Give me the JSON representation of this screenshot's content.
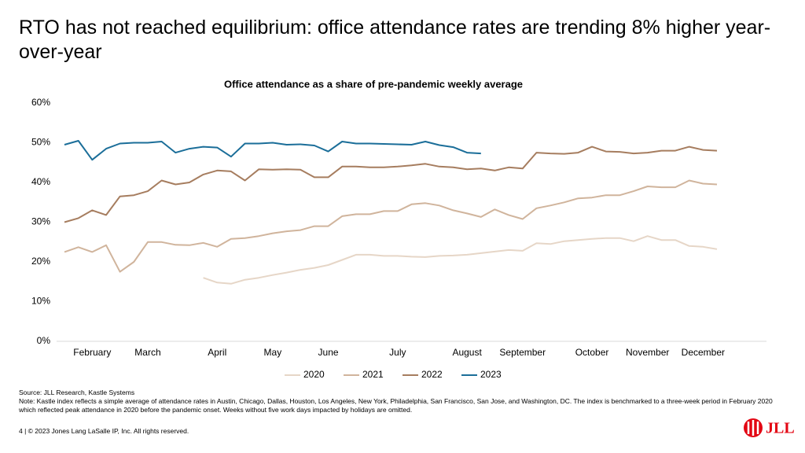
{
  "slide": {
    "title": "RTO has not reached equilibrium: office attendance rates are trending 8% higher year-over-year",
    "source": "Source: JLL Research, Kastle Systems",
    "note": "Note: Kastle index reflects a simple average of attendance rates in Austin, Chicago, Dallas, Houston, Los Angeles, New York, Philadelphia, San Francisco, San Jose, and Washington, DC. The index is benchmarked to a three-week period in February 2020 which reflected peak attendance in 2020 before the pandemic onset. Weeks without five work days impacted by holidays are omitted.",
    "footer": "4  |  © 2023 Jones Lang LaSalle IP, Inc. All rights reserved.",
    "logo": "JLL"
  },
  "chart_data": {
    "type": "line",
    "title": "Office attendance as a share of pre-pandemic weekly average",
    "categories": [
      null,
      null,
      "February",
      null,
      null,
      null,
      "March",
      null,
      null,
      null,
      null,
      "April",
      null,
      null,
      null,
      "May",
      null,
      null,
      null,
      "June",
      null,
      null,
      null,
      null,
      "July",
      null,
      null,
      null,
      null,
      "August",
      null,
      null,
      null,
      "September",
      null,
      null,
      null,
      null,
      "October",
      null,
      null,
      null,
      "November",
      null,
      null,
      null,
      "December",
      null
    ],
    "series": [
      {
        "name": "2020",
        "color": "#e6d6c7",
        "values": [
          null,
          null,
          null,
          null,
          null,
          null,
          null,
          null,
          null,
          null,
          16,
          14.8,
          14.5,
          15.5,
          16,
          16.7,
          17.3,
          18,
          18.5,
          19.2,
          20.5,
          21.8,
          21.8,
          21.5,
          21.5,
          21.3,
          21.2,
          21.5,
          21.6,
          21.8,
          22.2,
          22.6,
          23,
          22.8,
          24.7,
          24.5,
          25.2,
          25.5,
          25.8,
          26,
          26,
          25.2,
          26.5,
          25.5,
          25.5,
          24,
          23.8,
          23.2
        ]
      },
      {
        "name": "2021",
        "color": "#d0b49c",
        "values": [
          22.5,
          23.7,
          22.5,
          24.2,
          17.5,
          20,
          25,
          25,
          24.3,
          24.2,
          24.8,
          23.8,
          25.8,
          26,
          26.5,
          27.2,
          27.7,
          28,
          29,
          29,
          31.5,
          32,
          32,
          32.8,
          32.8,
          34.5,
          34.8,
          34.2,
          33,
          32.2,
          31.3,
          33.2,
          31.8,
          30.8,
          33.5,
          34.2,
          35,
          36,
          36.2,
          36.8,
          36.8,
          37.8,
          39,
          38.8,
          38.8,
          40.5,
          39.7,
          39.5
        ]
      },
      {
        "name": "2022",
        "color": "#a67d5f",
        "values": [
          30,
          31,
          33,
          31.8,
          36.5,
          36.8,
          37.8,
          40.5,
          39.5,
          40,
          42,
          43,
          42.8,
          40.5,
          43.3,
          43.2,
          43.3,
          43.2,
          41.3,
          41.3,
          44,
          44,
          43.8,
          43.8,
          44,
          44.3,
          44.7,
          44,
          43.8,
          43.3,
          43.5,
          43,
          43.8,
          43.5,
          47.5,
          47.3,
          47.2,
          47.5,
          49,
          47.8,
          47.7,
          47.3,
          47.5,
          48,
          48,
          49,
          48.2,
          48
        ]
      },
      {
        "name": "2023",
        "color": "#1b6e99",
        "values": [
          49.5,
          50.5,
          45.7,
          48.5,
          49.8,
          50,
          50,
          50.3,
          47.5,
          48.5,
          49,
          48.8,
          46.5,
          49.8,
          49.8,
          50,
          49.5,
          49.6,
          49.3,
          47.8,
          50.3,
          49.8,
          49.8,
          49.7,
          49.6,
          49.5,
          50.3,
          49.4,
          48.9,
          47.5,
          47.3,
          null,
          null,
          null,
          null,
          null,
          null,
          null,
          null,
          null,
          null,
          null,
          null,
          null,
          null,
          null,
          null,
          null
        ]
      }
    ],
    "ylim": [
      0,
      60
    ],
    "yticks": [
      {
        "value": 0,
        "label": "0%"
      },
      {
        "value": 10,
        "label": "10%"
      },
      {
        "value": 20,
        "label": "20%"
      },
      {
        "value": 30,
        "label": "30%"
      },
      {
        "value": 40,
        "label": "40%"
      },
      {
        "value": 50,
        "label": "50%"
      },
      {
        "value": 60,
        "label": "60%"
      }
    ],
    "grid": false,
    "legend": "bottom"
  }
}
